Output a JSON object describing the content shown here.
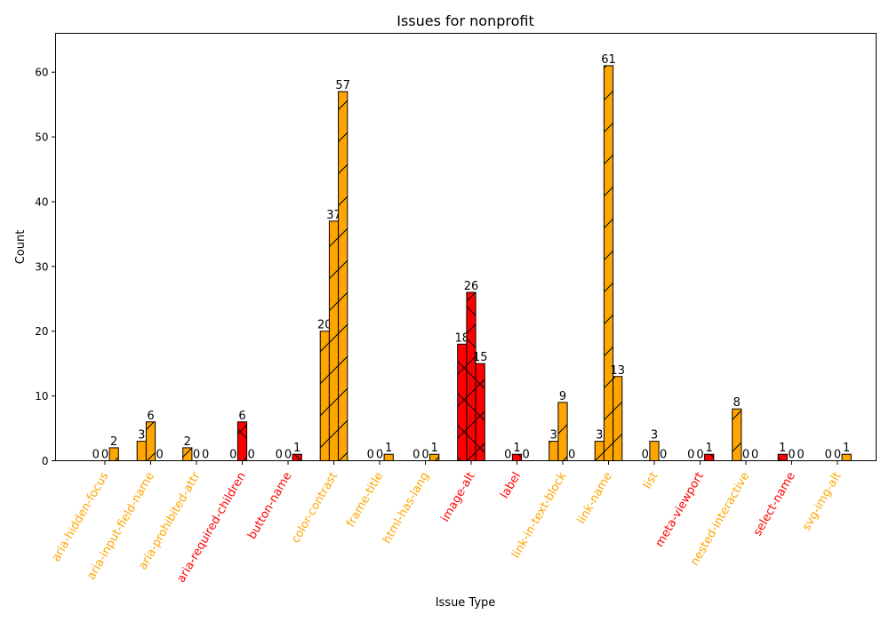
{
  "chart_data": {
    "type": "bar",
    "title": "Issues for nonprofit",
    "xlabel": "Issue Type",
    "ylabel": "Count",
    "ylim": [
      0,
      66
    ],
    "yticks": [
      0,
      10,
      20,
      30,
      40,
      50,
      60
    ],
    "grid": false,
    "categories": [
      {
        "label": "aria-hidden-focus",
        "color": "#FFA500",
        "values": [
          0,
          0,
          2
        ]
      },
      {
        "label": "aria-input-field-name",
        "color": "#FFA500",
        "values": [
          3,
          6,
          0
        ]
      },
      {
        "label": "aria-prohibited-attr",
        "color": "#FFA500",
        "values": [
          2,
          0,
          0
        ]
      },
      {
        "label": "aria-required-children",
        "color": "#FF0000",
        "values": [
          0,
          6,
          0
        ]
      },
      {
        "label": "button-name",
        "color": "#FF0000",
        "values": [
          0,
          0,
          1
        ]
      },
      {
        "label": "color-contrast",
        "color": "#FFA500",
        "values": [
          20,
          37,
          57
        ]
      },
      {
        "label": "frame-title",
        "color": "#FFA500",
        "values": [
          0,
          0,
          1
        ]
      },
      {
        "label": "html-has-lang",
        "color": "#FFA500",
        "values": [
          0,
          0,
          1
        ]
      },
      {
        "label": "image-alt",
        "color": "#FF0000",
        "values": [
          18,
          26,
          15
        ]
      },
      {
        "label": "label",
        "color": "#FF0000",
        "values": [
          0,
          1,
          0
        ]
      },
      {
        "label": "link-in-text-block",
        "color": "#FFA500",
        "values": [
          3,
          9,
          0
        ]
      },
      {
        "label": "link-name",
        "color": "#FFA500",
        "values": [
          3,
          61,
          13
        ]
      },
      {
        "label": "list",
        "color": "#FFA500",
        "values": [
          0,
          3,
          0
        ]
      },
      {
        "label": "meta-viewport",
        "color": "#FF0000",
        "values": [
          0,
          0,
          1
        ]
      },
      {
        "label": "nested-interactive",
        "color": "#FFA500",
        "values": [
          8,
          0,
          0
        ]
      },
      {
        "label": "select-name",
        "color": "#FF0000",
        "values": [
          1,
          0,
          0
        ]
      },
      {
        "label": "svg-img-alt",
        "color": "#FFA500",
        "values": [
          0,
          0,
          1
        ]
      }
    ],
    "hatch": {
      "#FFA500": "/",
      "#FF0000": "x"
    }
  }
}
